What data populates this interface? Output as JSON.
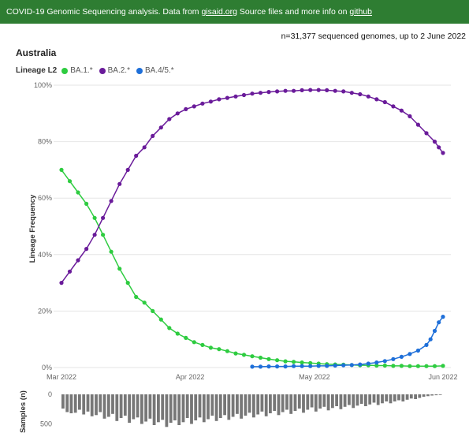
{
  "banner": {
    "text_before": "COVID-19 Genomic Sequencing analysis. Data from ",
    "link1": "gisaid.org",
    "text_mid": " Source files and more info on ",
    "link2": "github"
  },
  "sample_count": "n=31,377 sequenced genomes, up to 2 June 2022",
  "country": "Australia",
  "colors": {
    "ba1": "#2ecc40",
    "ba2": "#6a1b9a",
    "ba45": "#1e6fd9",
    "bars": "#777777"
  },
  "chart_data": [
    {
      "type": "line",
      "title": "Australia",
      "legend_title": "Lineage L2",
      "xlabel": "",
      "ylabel": "Lineage Frequency",
      "x_tick_labels": [
        "Mar 2022",
        "Apr 2022",
        "May 2022",
        "Jun 2022"
      ],
      "x_tick_days": [
        0,
        31,
        61,
        92
      ],
      "y_tick_labels": [
        "0%",
        "20%",
        "40%",
        "60%",
        "80%",
        "100%"
      ],
      "ylim": [
        0,
        100
      ],
      "legend_position": "top-left",
      "grid": true,
      "series": [
        {
          "name": "BA.1.*",
          "points": [
            [
              0,
              70
            ],
            [
              2,
              66
            ],
            [
              4,
              62
            ],
            [
              6,
              58
            ],
            [
              8,
              53
            ],
            [
              10,
              47
            ],
            [
              12,
              41
            ],
            [
              14,
              35
            ],
            [
              16,
              30
            ],
            [
              18,
              25
            ],
            [
              20,
              23
            ],
            [
              22,
              20
            ],
            [
              24,
              17
            ],
            [
              26,
              14
            ],
            [
              28,
              12
            ],
            [
              30,
              10.5
            ],
            [
              32,
              9
            ],
            [
              34,
              8
            ],
            [
              36,
              7
            ],
            [
              38,
              6.5
            ],
            [
              40,
              5.8
            ],
            [
              42,
              5
            ],
            [
              44,
              4.5
            ],
            [
              46,
              4
            ],
            [
              48,
              3.5
            ],
            [
              50,
              3
            ],
            [
              52,
              2.6
            ],
            [
              54,
              2.2
            ],
            [
              56,
              2
            ],
            [
              58,
              1.8
            ],
            [
              60,
              1.6
            ],
            [
              62,
              1.4
            ],
            [
              64,
              1.2
            ],
            [
              66,
              1.1
            ],
            [
              68,
              1
            ],
            [
              70,
              0.9
            ],
            [
              72,
              0.8
            ],
            [
              74,
              0.8
            ],
            [
              76,
              0.7
            ],
            [
              78,
              0.7
            ],
            [
              80,
              0.6
            ],
            [
              82,
              0.6
            ],
            [
              84,
              0.5
            ],
            [
              86,
              0.5
            ],
            [
              88,
              0.5
            ],
            [
              90,
              0.5
            ],
            [
              92,
              0.6
            ]
          ]
        },
        {
          "name": "BA.2.*",
          "points": [
            [
              0,
              30
            ],
            [
              2,
              34
            ],
            [
              4,
              38
            ],
            [
              6,
              42
            ],
            [
              8,
              47
            ],
            [
              10,
              53
            ],
            [
              12,
              59
            ],
            [
              14,
              65
            ],
            [
              16,
              70
            ],
            [
              18,
              75
            ],
            [
              20,
              78
            ],
            [
              22,
              82
            ],
            [
              24,
              85
            ],
            [
              26,
              88
            ],
            [
              28,
              90
            ],
            [
              30,
              91.5
            ],
            [
              32,
              92.5
            ],
            [
              34,
              93.5
            ],
            [
              36,
              94.2
            ],
            [
              38,
              95
            ],
            [
              40,
              95.5
            ],
            [
              42,
              96
            ],
            [
              44,
              96.5
            ],
            [
              46,
              97
            ],
            [
              48,
              97.3
            ],
            [
              50,
              97.6
            ],
            [
              52,
              97.8
            ],
            [
              54,
              98
            ],
            [
              56,
              98
            ],
            [
              58,
              98.2
            ],
            [
              60,
              98.3
            ],
            [
              62,
              98.3
            ],
            [
              64,
              98.2
            ],
            [
              66,
              98
            ],
            [
              68,
              97.8
            ],
            [
              70,
              97.3
            ],
            [
              72,
              96.8
            ],
            [
              74,
              96
            ],
            [
              76,
              95
            ],
            [
              78,
              94
            ],
            [
              80,
              92.5
            ],
            [
              82,
              91
            ],
            [
              84,
              89
            ],
            [
              86,
              86
            ],
            [
              88,
              83
            ],
            [
              90,
              80
            ],
            [
              91,
              78
            ],
            [
              92,
              76
            ]
          ]
        },
        {
          "name": "BA.4/5.*",
          "points": [
            [
              46,
              0.3
            ],
            [
              48,
              0.3
            ],
            [
              50,
              0.4
            ],
            [
              52,
              0.4
            ],
            [
              54,
              0.4
            ],
            [
              56,
              0.5
            ],
            [
              58,
              0.5
            ],
            [
              60,
              0.5
            ],
            [
              62,
              0.6
            ],
            [
              64,
              0.6
            ],
            [
              66,
              0.7
            ],
            [
              68,
              0.8
            ],
            [
              70,
              0.9
            ],
            [
              72,
              1.1
            ],
            [
              74,
              1.4
            ],
            [
              76,
              1.8
            ],
            [
              78,
              2.3
            ],
            [
              80,
              3
            ],
            [
              82,
              3.8
            ],
            [
              84,
              4.8
            ],
            [
              86,
              6
            ],
            [
              88,
              8
            ],
            [
              89,
              10
            ],
            [
              90,
              13
            ],
            [
              91,
              16
            ],
            [
              92,
              18
            ]
          ]
        }
      ]
    },
    {
      "type": "bar",
      "ylabel": "Samples (n)",
      "y_tick_labels": [
        "0",
        "500"
      ],
      "ylim": [
        0,
        600
      ],
      "values": [
        240,
        300,
        320,
        310,
        260,
        340,
        290,
        370,
        350,
        300,
        410,
        380,
        330,
        450,
        400,
        360,
        480,
        420,
        390,
        500,
        460,
        410,
        520,
        470,
        430,
        550,
        480,
        440,
        520,
        470,
        400,
        500,
        440,
        390,
        470,
        420,
        360,
        450,
        400,
        350,
        430,
        380,
        330,
        410,
        360,
        310,
        390,
        340,
        290,
        370,
        320,
        280,
        350,
        300,
        260,
        330,
        280,
        240,
        310,
        260,
        220,
        290,
        240,
        210,
        270,
        230,
        200,
        250,
        210,
        180,
        230,
        190,
        160,
        200,
        170,
        140,
        180,
        150,
        120,
        150,
        120,
        100,
        120,
        90,
        70,
        80,
        60,
        40,
        30,
        20,
        15,
        10
      ]
    }
  ]
}
